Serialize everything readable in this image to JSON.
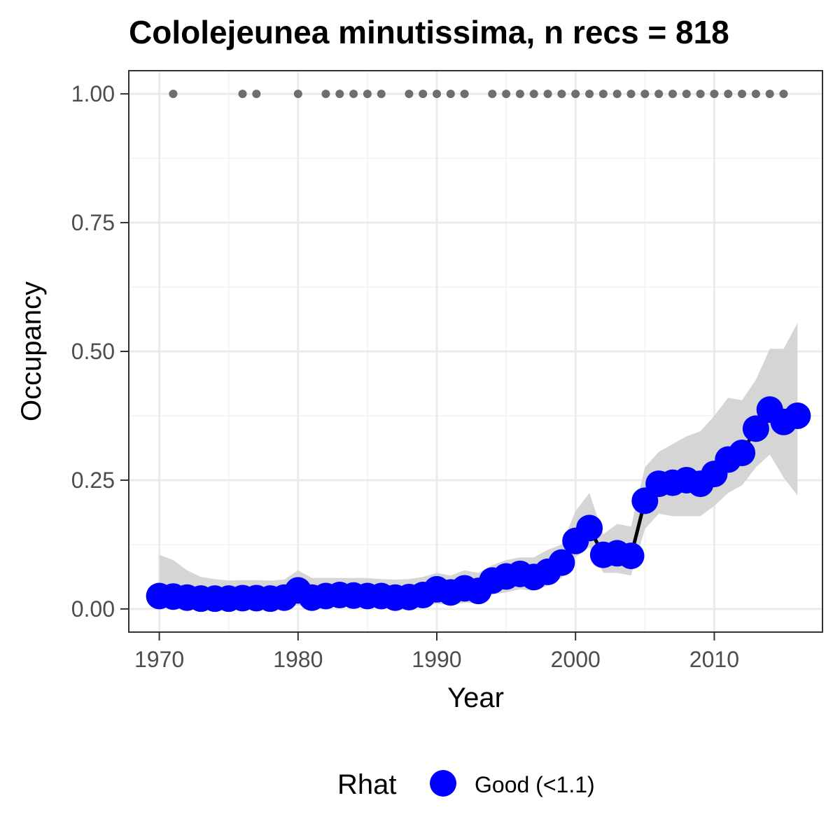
{
  "chart_data": {
    "type": "line",
    "title": "Cololejeunea minutissima, n recs = 818",
    "xlabel": "Year",
    "ylabel": "Occupancy",
    "xlim": [
      1967.8,
      2017.8
    ],
    "ylim": [
      -0.045,
      1.045
    ],
    "x_ticks": [
      1970,
      1980,
      1990,
      2000,
      2010
    ],
    "x_tick_labels": [
      "1970",
      "1980",
      "1990",
      "2000",
      "2010"
    ],
    "y_ticks": [
      0,
      0.25,
      0.5,
      0.75,
      1.0
    ],
    "y_tick_labels": [
      "0.00",
      "0.25",
      "0.50",
      "0.75",
      "1.00"
    ],
    "grid": true,
    "legend": {
      "title": "Rhat",
      "position": "bottom",
      "entries": [
        {
          "label": "Good (<1.1)",
          "color": "#0000ff"
        }
      ]
    },
    "series": [
      {
        "type": "ribbon",
        "color": "#d3d3d3",
        "x": [
          1970,
          1971,
          1972,
          1973,
          1974,
          1975,
          1976,
          1977,
          1978,
          1979,
          1980,
          1981,
          1982,
          1983,
          1984,
          1985,
          1986,
          1987,
          1988,
          1989,
          1990,
          1991,
          1992,
          1993,
          1994,
          1995,
          1996,
          1997,
          1998,
          1999,
          2000,
          2001,
          2002,
          2003,
          2004,
          2005,
          2006,
          2007,
          2008,
          2009,
          2010,
          2011,
          2012,
          2013,
          2014,
          2015,
          2016
        ],
        "lower": [
          0.005,
          0.005,
          0.004,
          0.003,
          0.003,
          0.003,
          0.003,
          0.003,
          0.003,
          0.003,
          0.007,
          0.004,
          0.005,
          0.005,
          0.005,
          0.005,
          0.005,
          0.005,
          0.005,
          0.006,
          0.01,
          0.008,
          0.012,
          0.012,
          0.028,
          0.032,
          0.038,
          0.035,
          0.045,
          0.06,
          0.1,
          0.12,
          0.07,
          0.07,
          0.065,
          0.155,
          0.185,
          0.18,
          0.18,
          0.18,
          0.2,
          0.225,
          0.24,
          0.275,
          0.3,
          0.255,
          0.22
        ],
        "upper": [
          0.105,
          0.095,
          0.075,
          0.062,
          0.058,
          0.055,
          0.056,
          0.056,
          0.055,
          0.057,
          0.075,
          0.06,
          0.06,
          0.06,
          0.06,
          0.06,
          0.058,
          0.057,
          0.058,
          0.062,
          0.07,
          0.065,
          0.075,
          0.07,
          0.085,
          0.095,
          0.1,
          0.1,
          0.115,
          0.125,
          0.19,
          0.225,
          0.145,
          0.165,
          0.16,
          0.275,
          0.305,
          0.32,
          0.335,
          0.345,
          0.375,
          0.41,
          0.405,
          0.445,
          0.505,
          0.505,
          0.555
        ]
      },
      {
        "type": "line",
        "name": "Good (<1.1)",
        "color": "#0000ff",
        "x": [
          1970,
          1971,
          1972,
          1973,
          1974,
          1975,
          1976,
          1977,
          1978,
          1979,
          1980,
          1981,
          1982,
          1983,
          1984,
          1985,
          1986,
          1987,
          1988,
          1989,
          1990,
          1991,
          1992,
          1993,
          1994,
          1995,
          1996,
          1997,
          1998,
          1999,
          2000,
          2001,
          2002,
          2003,
          2004,
          2005,
          2006,
          2007,
          2008,
          2009,
          2010,
          2011,
          2012,
          2013,
          2014,
          2015,
          2016
        ],
        "y": [
          0.025,
          0.024,
          0.022,
          0.02,
          0.02,
          0.02,
          0.021,
          0.021,
          0.02,
          0.022,
          0.036,
          0.022,
          0.025,
          0.027,
          0.026,
          0.025,
          0.025,
          0.022,
          0.023,
          0.027,
          0.038,
          0.032,
          0.04,
          0.035,
          0.055,
          0.063,
          0.068,
          0.062,
          0.072,
          0.09,
          0.132,
          0.157,
          0.105,
          0.108,
          0.103,
          0.21,
          0.243,
          0.245,
          0.25,
          0.243,
          0.262,
          0.29,
          0.303,
          0.35,
          0.387,
          0.363,
          0.375
        ]
      },
      {
        "type": "scatter",
        "color": "#6e6e6e",
        "x": [
          1971,
          1976,
          1977,
          1980,
          1982,
          1983,
          1984,
          1985,
          1986,
          1988,
          1989,
          1990,
          1991,
          1992,
          1994,
          1995,
          1996,
          1997,
          1998,
          1999,
          2000,
          2001,
          2002,
          2003,
          2004,
          2005,
          2006,
          2007,
          2008,
          2009,
          2010,
          2011,
          2012,
          2013,
          2014,
          2015
        ],
        "y": [
          1,
          1,
          1,
          1,
          1,
          1,
          1,
          1,
          1,
          1,
          1,
          1,
          1,
          1,
          1,
          1,
          1,
          1,
          1,
          1,
          1,
          1,
          1,
          1,
          1,
          1,
          1,
          1,
          1,
          1,
          1,
          1,
          1,
          1,
          1,
          1
        ]
      }
    ]
  }
}
